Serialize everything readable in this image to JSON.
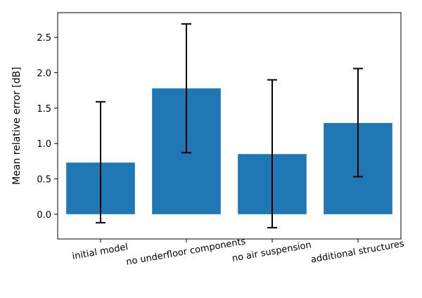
{
  "chart_data": {
    "type": "bar",
    "categories": [
      "initial model",
      "no underfloor components",
      "no air suspension",
      "additional structures"
    ],
    "values": [
      0.73,
      1.78,
      0.85,
      1.29
    ],
    "error_low": [
      -0.12,
      0.87,
      -0.19,
      0.53
    ],
    "error_high": [
      1.59,
      2.69,
      1.9,
      2.06
    ],
    "ylabel": "Mean relative error [dB]",
    "ylim": [
      -0.35,
      2.85
    ],
    "yticks": [
      0.0,
      0.5,
      1.0,
      1.5,
      2.0,
      2.5
    ],
    "ytick_labels": [
      "0.0",
      "0.5",
      "1.0",
      "1.5",
      "2.0",
      "2.5"
    ],
    "grid": false,
    "bar_color": "#1f77b4",
    "error_color": "#000000",
    "x_tick_rotation_deg": 10
  }
}
